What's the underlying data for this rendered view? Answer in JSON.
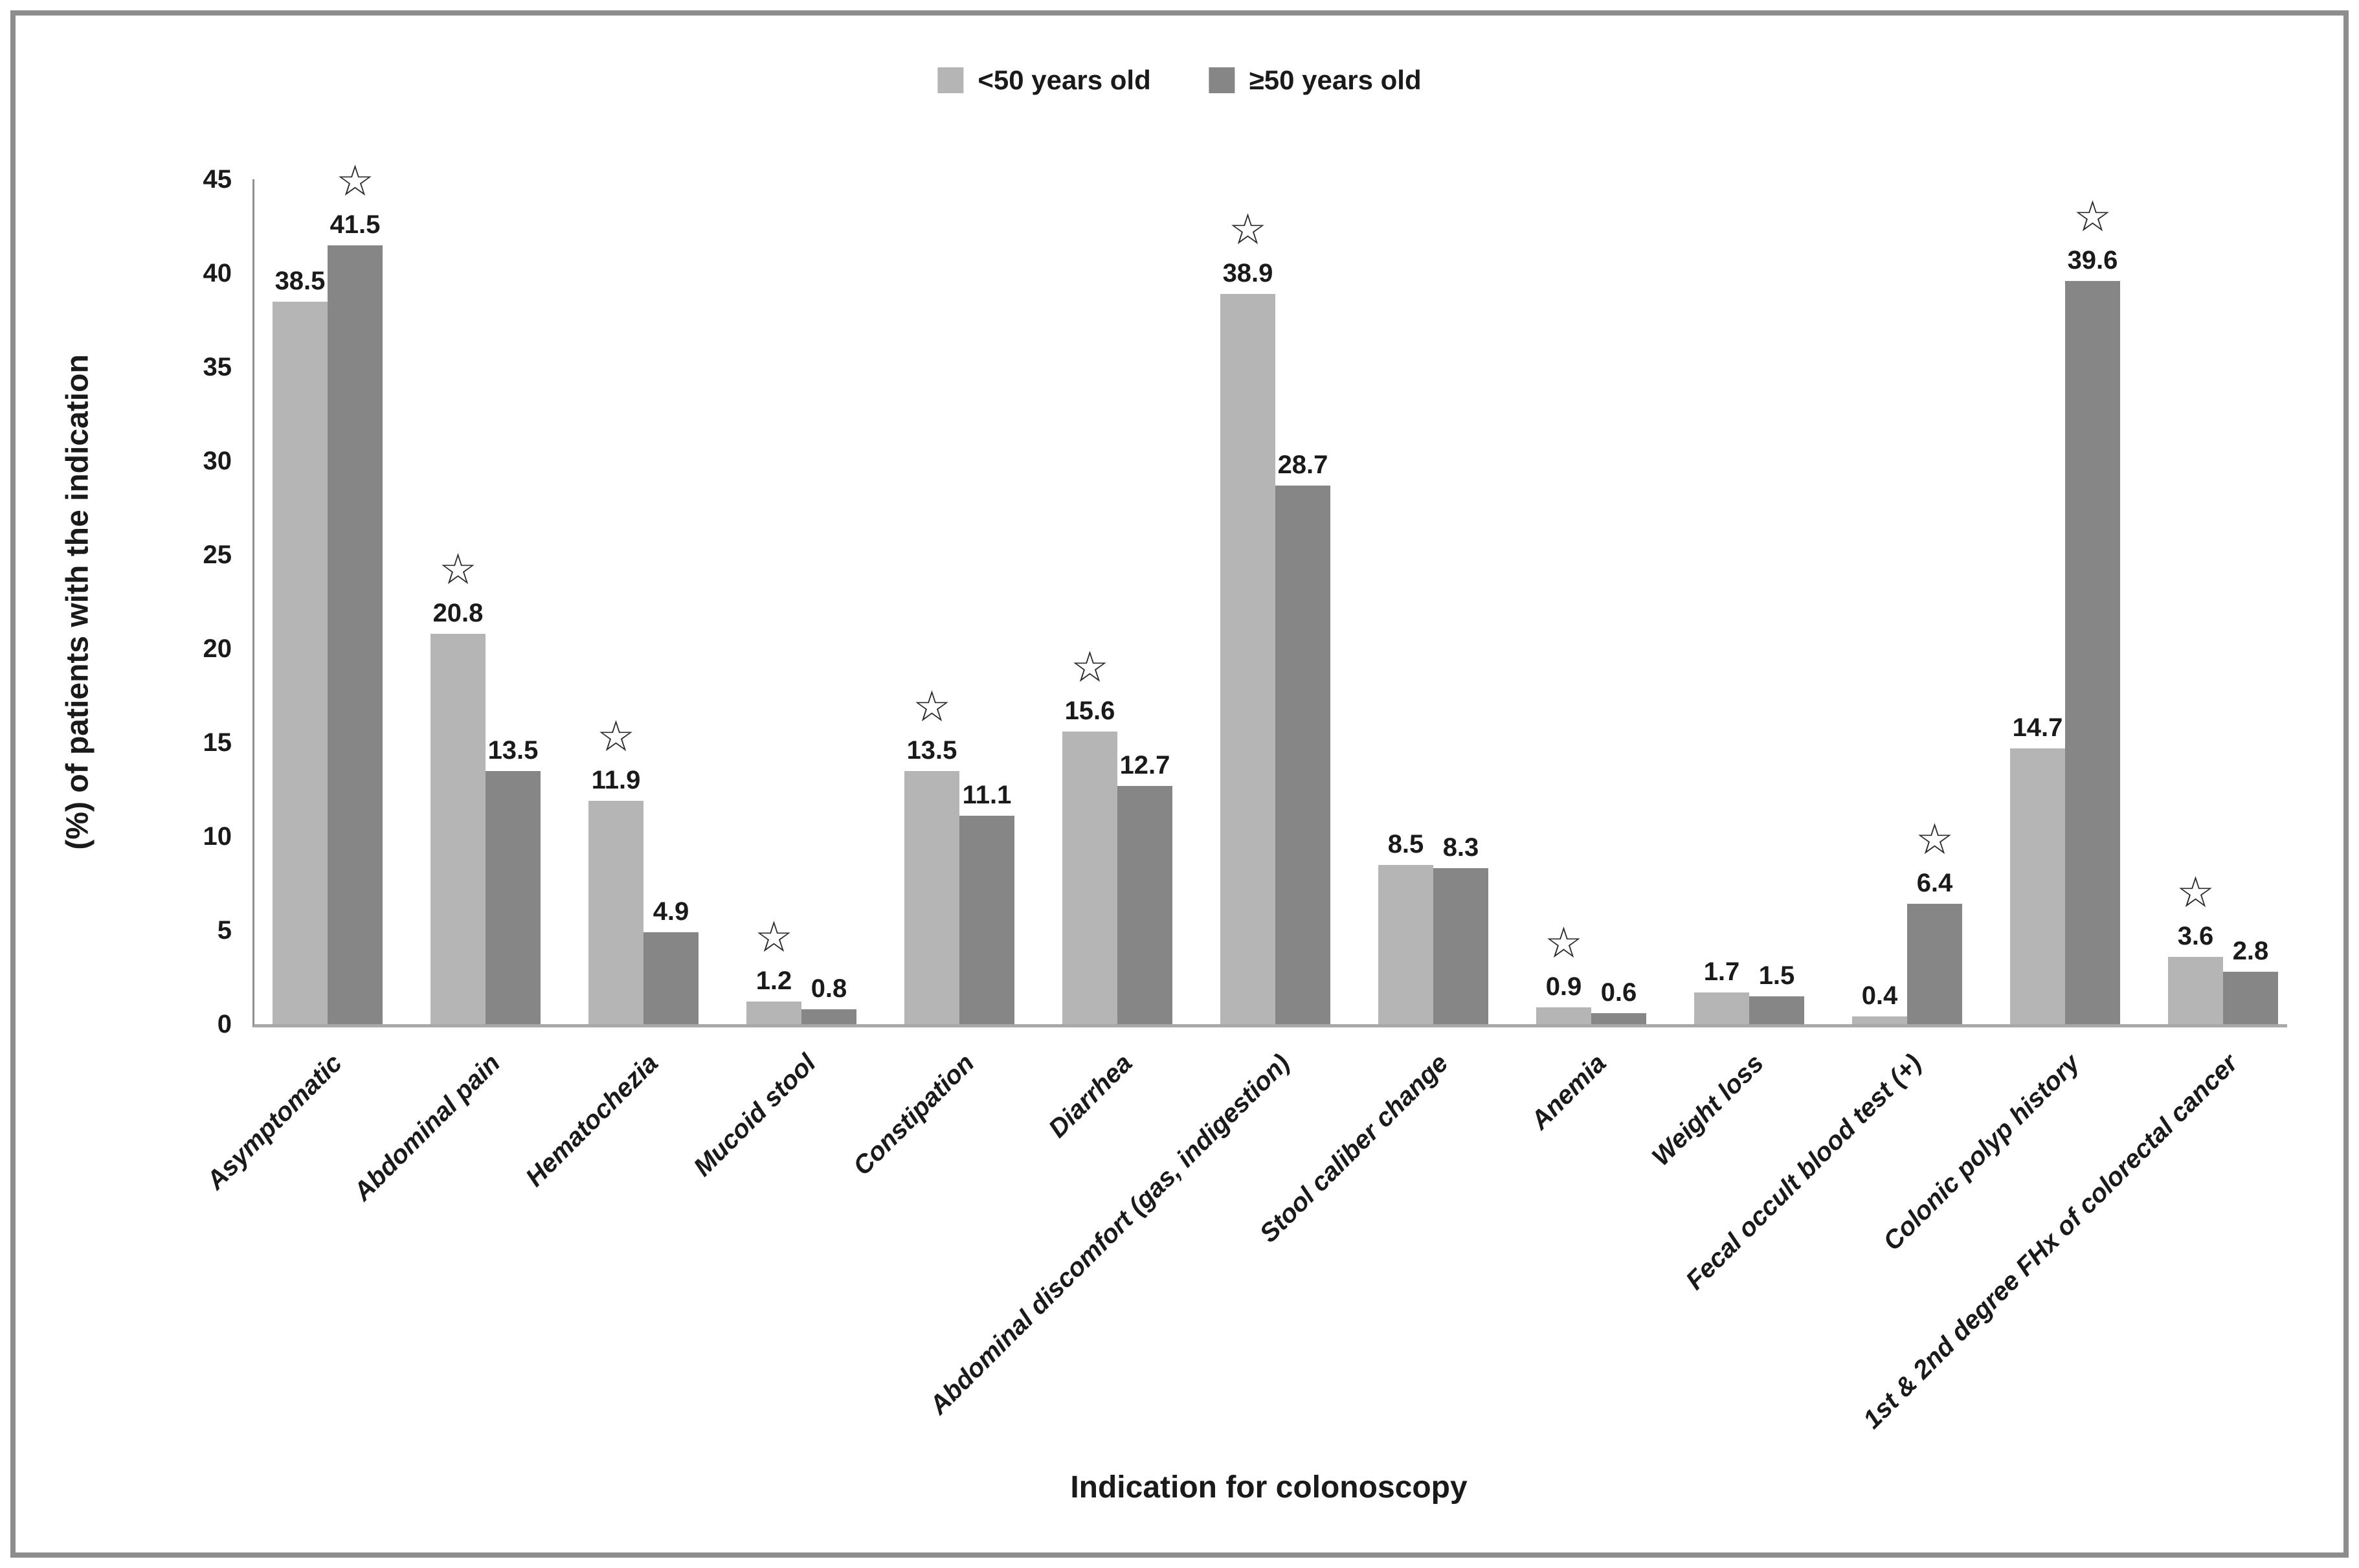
{
  "chart_data": {
    "type": "bar",
    "title": "",
    "xlabel": "Indication for colonoscopy",
    "ylabel": "(%) of patients with the indication",
    "ylim": [
      0,
      45
    ],
    "ytick_step": 5,
    "ytick_labels": [
      "0",
      "5",
      "10",
      "15",
      "20",
      "25",
      "30",
      "35",
      "40",
      "45"
    ],
    "grid": false,
    "legend_position": "top-center",
    "star_symbol": "☆",
    "categories": [
      "Asymptomatic",
      "Abdominal pain",
      "Hematochezia",
      "Mucoid stool",
      "Constipation",
      "Diarrhea",
      "Abdominal discomfort (gas, indigestion)",
      "Stool caliber change",
      "Anemia",
      "Weight loss",
      "Fecal occult blood test (+)",
      "Colonic polyp history",
      "1st & 2nd degree FHx of colorectal cancer"
    ],
    "series": [
      {
        "name": "<50 years old",
        "color": "#b5b5b5",
        "values": [
          38.5,
          20.8,
          11.9,
          1.2,
          13.5,
          15.6,
          38.9,
          8.5,
          0.9,
          1.7,
          0.4,
          14.7,
          3.6
        ],
        "starred": [
          false,
          true,
          true,
          true,
          true,
          true,
          true,
          false,
          true,
          false,
          false,
          false,
          true
        ]
      },
      {
        "name": "≥50 years old",
        "color": "#868686",
        "values": [
          41.5,
          13.5,
          4.9,
          0.8,
          11.1,
          12.7,
          28.7,
          8.3,
          0.6,
          1.5,
          6.4,
          39.6,
          2.8
        ],
        "starred": [
          true,
          false,
          false,
          false,
          false,
          false,
          false,
          false,
          false,
          false,
          true,
          true,
          false
        ]
      }
    ]
  }
}
